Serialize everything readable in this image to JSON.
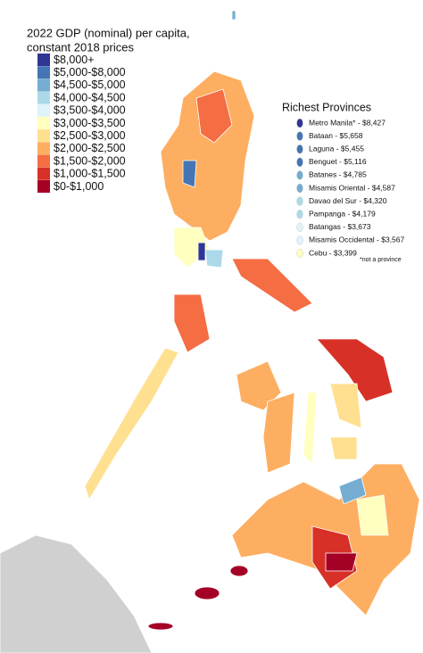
{
  "map": {
    "title_lines": [
      "2022 GDP (nominal) per capita,",
      "constant 2018 prices"
    ],
    "legend": [
      {
        "label": "$8,000+",
        "color": "#313695"
      },
      {
        "label": "$5,000-$8,000",
        "color": "#4575b4"
      },
      {
        "label": "$4,500-$5,000",
        "color": "#74add1"
      },
      {
        "label": "$4,000-$4,500",
        "color": "#abd9e9"
      },
      {
        "label": "$3,500-$4,000",
        "color": "#e0f3f8"
      },
      {
        "label": "$3,000-$3,500",
        "color": "#ffffbf"
      },
      {
        "label": "$2,500-$3,000",
        "color": "#fee090"
      },
      {
        "label": "$2,000-$2,500",
        "color": "#fdae61"
      },
      {
        "label": "$1,500-$2,000",
        "color": "#f46d43"
      },
      {
        "label": "$1,000-$1,500",
        "color": "#d73027"
      },
      {
        "label": "$0-$1,000",
        "color": "#a50026"
      }
    ],
    "richest_title": "Richest Provinces",
    "richest": [
      {
        "label": "Metro Manila* - $8,427",
        "color": "#313695"
      },
      {
        "label": "Bataan - $5,658",
        "color": "#4575b4"
      },
      {
        "label": "Laguna - $5,455",
        "color": "#4575b4"
      },
      {
        "label": "Benguet - $5,116",
        "color": "#4575b4"
      },
      {
        "label": "Batanes - $4,785",
        "color": "#74add1"
      },
      {
        "label": "Misamis Oriental - $4,587",
        "color": "#74add1"
      },
      {
        "label": "Davao del Sur - $4,320",
        "color": "#abd9e9"
      },
      {
        "label": "Pampanga - $4,179",
        "color": "#abd9e9"
      },
      {
        "label": "Batangas - $3,673",
        "color": "#e0f3f8"
      },
      {
        "label": "Misamis Occidental - $3,567",
        "color": "#e0f3f8"
      },
      {
        "label": "Cebu - $3,399",
        "color": "#ffffbf"
      }
    ],
    "note": "*not a province"
  }
}
